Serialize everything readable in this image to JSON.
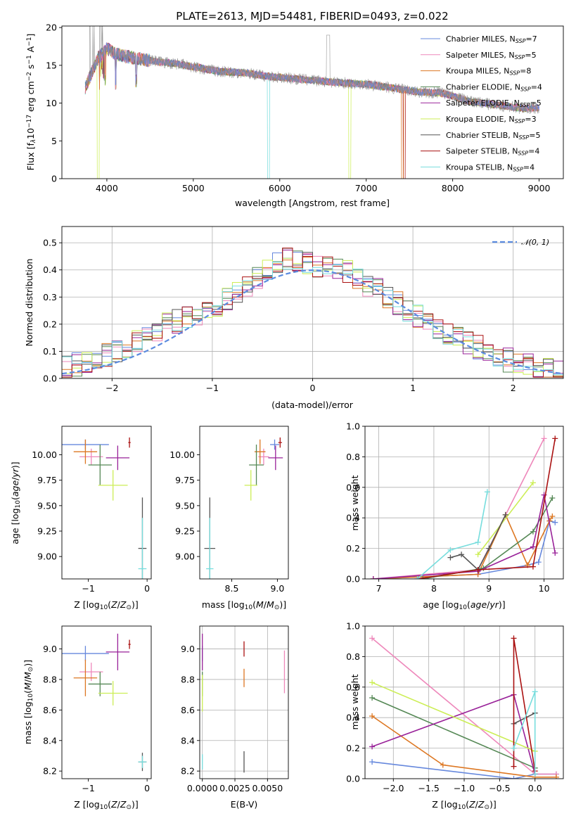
{
  "title": "PLATE=2613, MJD=54481, FIBERID=0493, z=0.022",
  "colors": [
    "#6688dd",
    "#ee88bb",
    "#dd7722",
    "#558855",
    "#992299",
    "#ccee55",
    "#555555",
    "#aa1111",
    "#77dddd"
  ],
  "models": [
    {
      "name": "Chabrier MILES, N",
      "sub": "SSP",
      "n": "=7"
    },
    {
      "name": "Salpeter MILES, N",
      "sub": "SSP",
      "n": "=5"
    },
    {
      "name": "Kroupa MILES, N",
      "sub": "SSP",
      "n": "=8"
    },
    {
      "name": "Chabrier ELODIE, N",
      "sub": "SSP",
      "n": "=4"
    },
    {
      "name": "Salpeter ELODIE, N",
      "sub": "SSP",
      "n": "=5"
    },
    {
      "name": "Kroupa ELODIE, N",
      "sub": "SSP",
      "n": "=3"
    },
    {
      "name": "Chabrier STELIB, N",
      "sub": "SSP",
      "n": "=5"
    },
    {
      "name": "Salpeter STELIB, N",
      "sub": "SSP",
      "n": "=4"
    },
    {
      "name": "Kroupa STELIB, N",
      "sub": "SSP",
      "n": "=4"
    }
  ],
  "chart_data": [
    {
      "id": "spectrum",
      "type": "line",
      "xlabel": "wavelength [Angstrom, rest frame]",
      "ylabel_parts": [
        "Flux [f",
        "λ",
        "10",
        "−17",
        " erg cm",
        "−2",
        " s",
        "−1",
        " A",
        "−1",
        "]"
      ],
      "xlim": [
        3480,
        9280
      ],
      "ylim": [
        0,
        20.2
      ],
      "xticks": [
        4000,
        5000,
        6000,
        7000,
        8000,
        9000
      ],
      "yticks": [
        0,
        5,
        10,
        15,
        20
      ],
      "observed_envelope": {
        "x": [
          3750,
          3900,
          4000,
          4100,
          4300,
          4500,
          4800,
          5000,
          5300,
          5600,
          5900,
          6200,
          6500,
          6700,
          7000,
          7300,
          7600,
          7900,
          8200,
          8500,
          8800,
          9000
        ],
        "y": [
          12.0,
          16.0,
          17.2,
          16.5,
          16.0,
          15.6,
          15.2,
          14.8,
          14.2,
          14.0,
          13.5,
          13.2,
          12.9,
          12.7,
          12.5,
          12.0,
          11.5,
          11.3,
          10.2,
          9.8,
          9.3,
          9.4
        ]
      },
      "legend_position": "upper right"
    },
    {
      "id": "residuals",
      "type": "histogram",
      "xlabel": "(data-model)/error",
      "ylabel": "Normed distribution",
      "xlim": [
        -2.5,
        2.5
      ],
      "ylim": [
        0,
        0.56
      ],
      "xticks": [
        -2,
        -1,
        0,
        1,
        2
      ],
      "yticks": [
        0.0,
        0.1,
        0.2,
        0.3,
        0.4,
        0.5
      ],
      "reference": {
        "label": "𝒩(0, 1)",
        "mean": 0,
        "sigma": 1
      },
      "bin_width": 0.1,
      "series_samples": {
        "x": [
          -2.45,
          -2.0,
          -1.5,
          -1.0,
          -0.5,
          -0.3,
          0,
          0.3,
          0.5,
          1.0,
          1.5,
          2.0,
          2.45
        ],
        "y": [
          0.04,
          0.09,
          0.19,
          0.26,
          0.38,
          0.44,
          0.42,
          0.41,
          0.36,
          0.24,
          0.14,
          0.06,
          0.02
        ]
      },
      "legend_position": "upper right"
    },
    {
      "id": "age-vs-Z",
      "type": "scatter",
      "xlabel": "Z [log10(Z/Z⊙)]",
      "ylabel": "age  [log10(age/yr)]",
      "xlim": [
        -1.45,
        0.07
      ],
      "ylim": [
        8.78,
        10.28
      ],
      "xticks": [
        -1,
        0
      ],
      "yticks": [
        9.0,
        9.25,
        9.5,
        9.75,
        10.0
      ],
      "points": [
        {
          "x": -1.05,
          "y": 10.1,
          "xerr": 0.4,
          "yerr": 0.05
        },
        {
          "x": -0.95,
          "y": 9.98,
          "xerr": 0.2,
          "yerr": 0.08
        },
        {
          "x": -1.05,
          "y": 10.03,
          "xerr": 0.2,
          "yerr": 0.12
        },
        {
          "x": -0.8,
          "y": 9.9,
          "xerr": 0.2,
          "yerr": 0.2
        },
        {
          "x": -0.5,
          "y": 9.97,
          "xerr": 0.2,
          "yerr": 0.12
        },
        {
          "x": -0.58,
          "y": 9.7,
          "xerr": 0.25,
          "yerr": 0.15
        },
        {
          "x": -0.08,
          "y": 9.08,
          "xerr": 0.07,
          "yerr": 0.5
        },
        {
          "x": -0.3,
          "y": 10.12,
          "xerr": 0.02,
          "yerr": 0.05
        },
        {
          "x": -0.08,
          "y": 8.88,
          "xerr": 0.07,
          "yerr": 0.5
        }
      ]
    },
    {
      "id": "age-vs-mass",
      "type": "scatter",
      "xlabel": "mass [log10(M/M⊙)]",
      "ylabel": "",
      "xlim": [
        8.15,
        9.12
      ],
      "ylim": [
        8.78,
        10.28
      ],
      "xticks": [
        8.5,
        9.0
      ],
      "yticks": [
        9.0,
        9.25,
        9.5,
        9.75,
        10.0
      ],
      "points": [
        {
          "x": 8.97,
          "y": 10.1,
          "xerr": 0.05,
          "yerr": 0.05
        },
        {
          "x": 8.85,
          "y": 9.98,
          "xerr": 0.06,
          "yerr": 0.08
        },
        {
          "x": 8.81,
          "y": 10.03,
          "xerr": 0.06,
          "yerr": 0.12
        },
        {
          "x": 8.77,
          "y": 9.9,
          "xerr": 0.08,
          "yerr": 0.2
        },
        {
          "x": 8.98,
          "y": 9.97,
          "xerr": 0.08,
          "yerr": 0.12
        },
        {
          "x": 8.71,
          "y": 9.7,
          "xerr": 0.07,
          "yerr": 0.15
        },
        {
          "x": 8.26,
          "y": 9.08,
          "xerr": 0.06,
          "yerr": 0.5
        },
        {
          "x": 9.03,
          "y": 10.12,
          "xerr": 0.02,
          "yerr": 0.05
        },
        {
          "x": 8.26,
          "y": 8.88,
          "xerr": 0.04,
          "yerr": 0.5
        }
      ]
    },
    {
      "id": "mass-weight-vs-age",
      "type": "line",
      "xlabel": "age  [log10(age/yr)]",
      "ylabel": "mass weight",
      "xlim": [
        6.75,
        10.35
      ],
      "ylim": [
        0,
        1.0
      ],
      "xticks": [
        7,
        8,
        9,
        10
      ],
      "yticks": [
        0.0,
        0.2,
        0.4,
        0.6,
        0.8,
        1.0
      ],
      "series": [
        {
          "x": [
            6.9,
            8.8,
            9.7,
            9.9,
            10.1,
            10.2
          ],
          "y": [
            0.0,
            0.03,
            0.09,
            0.11,
            0.38,
            0.37
          ]
        },
        {
          "x": [
            6.9,
            8.8,
            10.0
          ],
          "y": [
            0.0,
            0.06,
            0.92
          ]
        },
        {
          "x": [
            6.9,
            8.8,
            9.3,
            9.7,
            10.1,
            10.15
          ],
          "y": [
            0.0,
            0.03,
            0.42,
            0.09,
            0.38,
            0.41
          ]
        },
        {
          "x": [
            7.8,
            8.9,
            9.8,
            10.15
          ],
          "y": [
            0.0,
            0.07,
            0.31,
            0.53
          ]
        },
        {
          "x": [
            6.9,
            8.8,
            9.8,
            10.0,
            10.2
          ],
          "y": [
            0.0,
            0.05,
            0.21,
            0.55,
            0.17
          ]
        },
        {
          "x": [
            8.8,
            9.8
          ],
          "y": [
            0.16,
            0.63
          ]
        },
        {
          "x": [
            8.3,
            8.5,
            8.8,
            9.0,
            9.3
          ],
          "y": [
            0.14,
            0.16,
            0.06,
            0.2,
            0.42
          ]
        },
        {
          "x": [
            7.7,
            8.8,
            9.8,
            10.2
          ],
          "y": [
            0.0,
            0.06,
            0.08,
            0.92
          ]
        },
        {
          "x": [
            7.7,
            8.3,
            8.8,
            8.97
          ],
          "y": [
            0.0,
            0.19,
            0.24,
            0.57
          ]
        }
      ]
    },
    {
      "id": "mass-vs-Z",
      "type": "scatter",
      "xlabel": "Z [log10(Z/Z⊙)]",
      "ylabel": "mass [log10(M/M⊙)]",
      "xlim": [
        -1.45,
        0.07
      ],
      "ylim": [
        8.15,
        9.15
      ],
      "xticks": [
        -1,
        0
      ],
      "yticks": [
        8.2,
        8.4,
        8.6,
        8.8,
        9.0
      ],
      "points": [
        {
          "x": -1.05,
          "y": 8.97,
          "xerr": 0.4,
          "yerr": 0.05
        },
        {
          "x": -0.95,
          "y": 8.85,
          "xerr": 0.2,
          "yerr": 0.06
        },
        {
          "x": -1.05,
          "y": 8.81,
          "xerr": 0.2,
          "yerr": 0.12
        },
        {
          "x": -0.8,
          "y": 8.77,
          "xerr": 0.2,
          "yerr": 0.08
        },
        {
          "x": -0.5,
          "y": 8.98,
          "xerr": 0.2,
          "yerr": 0.12
        },
        {
          "x": -0.58,
          "y": 8.71,
          "xerr": 0.25,
          "yerr": 0.08
        },
        {
          "x": -0.08,
          "y": 8.26,
          "xerr": 0.07,
          "yerr": 0.06
        },
        {
          "x": -0.3,
          "y": 9.03,
          "xerr": 0.02,
          "yerr": 0.03
        },
        {
          "x": -0.08,
          "y": 8.26,
          "xerr": 0.07,
          "yerr": 0.04
        }
      ]
    },
    {
      "id": "mass-vs-EBV",
      "type": "scatter",
      "xlabel": "E(B-V)",
      "ylabel": "",
      "xlim": [
        -0.0002,
        0.0066
      ],
      "ylim": [
        8.15,
        9.15
      ],
      "xticks": [
        0.0,
        0.0025,
        0.005
      ],
      "xtick_labels": [
        "0.0000",
        "0.0025",
        "0.0050"
      ],
      "yticks": [
        8.2,
        8.4,
        8.6,
        8.8,
        9.0
      ],
      "points": [
        {
          "x": 0.0,
          "y": 8.97,
          "yerr": 0.05
        },
        {
          "x": 0.0063,
          "y": 8.85,
          "yerr": 0.14
        },
        {
          "x": 0.0032,
          "y": 8.81,
          "yerr": 0.06
        },
        {
          "x": 0.0,
          "y": 8.77,
          "yerr": 0.08
        },
        {
          "x": 0.0,
          "y": 8.98,
          "yerr": 0.12
        },
        {
          "x": 0.0,
          "y": 8.71,
          "yerr": 0.12
        },
        {
          "x": 0.0032,
          "y": 8.26,
          "yerr": 0.07
        },
        {
          "x": 0.0032,
          "y": 9.0,
          "yerr": 0.05
        },
        {
          "x": 0.0,
          "y": 8.26,
          "yerr": 0.05
        }
      ]
    },
    {
      "id": "mass-weight-vs-Z",
      "type": "line",
      "xlabel": "Z [log10(Z/Z⊙)]",
      "ylabel": "mass weight",
      "xlim": [
        -2.4,
        0.4
      ],
      "ylim": [
        0,
        1.0
      ],
      "xticks": [
        -2.0,
        -1.5,
        -1.0,
        -0.5,
        0.0
      ],
      "yticks": [
        0.0,
        0.2,
        0.4,
        0.6,
        0.8,
        1.0
      ],
      "series": [
        {
          "x": [
            -2.3,
            -0.3,
            0.0,
            0.3
          ],
          "y": [
            0.11,
            0.0,
            0.03,
            0.03
          ]
        },
        {
          "x": [
            -2.3,
            0.0,
            0.3
          ],
          "y": [
            0.92,
            0.03,
            0.03
          ]
        },
        {
          "x": [
            -2.3,
            -1.3,
            0.0,
            0.3
          ],
          "y": [
            0.41,
            0.09,
            0.01,
            0.01
          ]
        },
        {
          "x": [
            -2.3,
            0.0
          ],
          "y": [
            0.53,
            0.07
          ]
        },
        {
          "x": [
            -2.3,
            -0.3,
            0.0
          ],
          "y": [
            0.21,
            0.55,
            0.03
          ]
        },
        {
          "x": [
            -2.3,
            0.0
          ],
          "y": [
            0.63,
            0.18
          ]
        },
        {
          "x": [
            -0.3,
            0.0
          ],
          "y": [
            0.36,
            0.43
          ]
        },
        {
          "x": [
            -0.3,
            -0.3,
            0.0
          ],
          "y": [
            0.08,
            0.92,
            0.05
          ]
        },
        {
          "x": [
            -0.3,
            0.0,
            0.0
          ],
          "y": [
            0.2,
            0.57,
            0.03
          ]
        }
      ]
    }
  ]
}
